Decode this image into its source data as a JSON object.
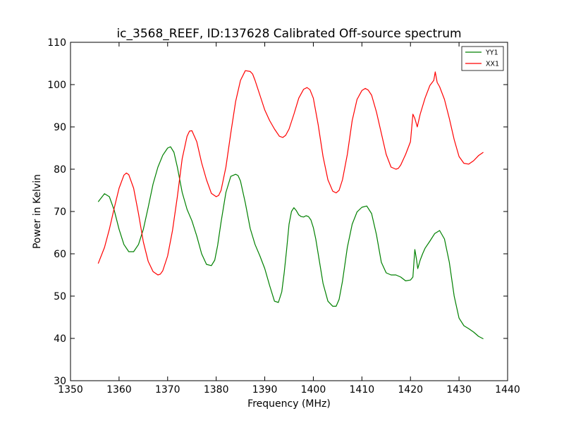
{
  "chart_data": {
    "type": "line",
    "title": "ic_3568_REEF, ID:137628 Calibrated Off-source spectrum",
    "xlabel": "Frequency (MHz)",
    "ylabel": "Power in Kelvin",
    "xlim": [
      1350,
      1440
    ],
    "ylim": [
      30,
      110
    ],
    "xticks": [
      1350,
      1360,
      1370,
      1380,
      1390,
      1400,
      1410,
      1420,
      1430,
      1440
    ],
    "yticks": [
      30,
      40,
      50,
      60,
      70,
      80,
      90,
      100,
      110
    ],
    "grid": false,
    "legend_position": "top-right",
    "series": [
      {
        "name": "YY1",
        "color": "#008000",
        "x": [
          1355.7,
          1357.0,
          1358.0,
          1359.0,
          1360.0,
          1361.0,
          1362.0,
          1363.0,
          1364.0,
          1365.0,
          1366.0,
          1367.0,
          1368.0,
          1369.0,
          1370.0,
          1370.6,
          1371.3,
          1372.0,
          1373.0,
          1374.0,
          1375.0,
          1376.0,
          1377.0,
          1378.0,
          1379.0,
          1379.7,
          1380.3,
          1381.0,
          1382.0,
          1383.0,
          1384.0,
          1384.5,
          1385.0,
          1386.0,
          1387.0,
          1388.0,
          1389.0,
          1390.0,
          1391.0,
          1392.0,
          1392.8,
          1393.5,
          1394.0,
          1394.5,
          1395.0,
          1395.5,
          1396.0,
          1396.5,
          1397.0,
          1397.5,
          1398.0,
          1398.5,
          1399.0,
          1399.5,
          1400.0,
          1400.5,
          1401.0,
          1402.0,
          1403.0,
          1404.0,
          1404.7,
          1405.3,
          1406.0,
          1407.0,
          1408.0,
          1409.0,
          1410.0,
          1411.0,
          1412.0,
          1413.0,
          1414.0,
          1415.0,
          1416.0,
          1417.0,
          1418.0,
          1419.0,
          1420.0,
          1420.5,
          1420.9,
          1421.2,
          1421.5,
          1422.0,
          1422.5,
          1423.0,
          1424.0,
          1425.0,
          1426.0,
          1427.0,
          1428.0,
          1429.0,
          1430.0,
          1431.0,
          1432.0,
          1433.0,
          1434.0,
          1435.0
        ],
        "values": [
          72.3,
          74.2,
          73.5,
          70.3,
          65.8,
          62.2,
          60.5,
          60.5,
          62.2,
          65.8,
          71.0,
          76.5,
          80.5,
          83.3,
          85.0,
          85.3,
          84.0,
          80.5,
          74.5,
          70.5,
          67.8,
          64.2,
          60.0,
          57.5,
          57.2,
          58.5,
          62.0,
          67.5,
          74.5,
          78.3,
          78.8,
          78.5,
          77.2,
          72.0,
          66.0,
          62.2,
          59.5,
          56.5,
          52.5,
          48.8,
          48.5,
          51.0,
          55.5,
          61.0,
          67.0,
          70.0,
          70.9,
          70.2,
          69.2,
          68.8,
          68.7,
          69.0,
          68.8,
          68.0,
          66.2,
          63.5,
          60.0,
          53.0,
          48.8,
          47.6,
          47.6,
          49.2,
          53.5,
          61.5,
          67.0,
          69.9,
          71.0,
          71.3,
          69.5,
          64.5,
          58.0,
          55.5,
          55.0,
          55.0,
          54.5,
          53.6,
          53.8,
          54.5,
          61.0,
          59.0,
          56.5,
          58.5,
          60.0,
          61.3,
          63.0,
          64.8,
          65.5,
          63.5,
          58.0,
          50.0,
          44.8,
          43.0,
          42.3,
          41.5,
          40.5,
          39.9
        ]
      },
      {
        "name": "XX1",
        "color": "#ff0000",
        "x": [
          1355.7,
          1357.0,
          1358.0,
          1359.0,
          1360.0,
          1361.0,
          1361.5,
          1362.0,
          1363.0,
          1364.0,
          1365.0,
          1366.0,
          1367.0,
          1368.0,
          1368.5,
          1369.0,
          1370.0,
          1371.0,
          1372.0,
          1373.0,
          1374.0,
          1374.5,
          1375.0,
          1376.0,
          1377.0,
          1378.0,
          1379.0,
          1380.0,
          1380.5,
          1381.0,
          1382.0,
          1383.0,
          1384.0,
          1385.0,
          1386.0,
          1387.0,
          1387.5,
          1388.0,
          1389.0,
          1390.0,
          1391.0,
          1392.0,
          1393.0,
          1393.7,
          1394.3,
          1395.0,
          1396.0,
          1397.0,
          1398.0,
          1398.7,
          1399.3,
          1400.0,
          1401.0,
          1402.0,
          1403.0,
          1404.0,
          1404.7,
          1405.3,
          1406.0,
          1407.0,
          1408.0,
          1409.0,
          1410.0,
          1410.7,
          1411.3,
          1412.0,
          1413.0,
          1414.0,
          1415.0,
          1416.0,
          1417.0,
          1417.5,
          1418.0,
          1419.0,
          1420.0,
          1420.5,
          1420.9,
          1421.4,
          1422.0,
          1423.0,
          1424.0,
          1424.8,
          1425.1,
          1425.5,
          1426.0,
          1427.0,
          1428.0,
          1429.0,
          1430.0,
          1431.0,
          1432.0,
          1433.0,
          1434.0,
          1435.0
        ],
        "values": [
          57.7,
          61.5,
          65.8,
          70.8,
          75.5,
          78.6,
          79.1,
          78.7,
          75.5,
          69.5,
          62.8,
          58.2,
          55.8,
          55.0,
          55.2,
          56.0,
          59.5,
          65.5,
          73.5,
          82.5,
          87.8,
          89.0,
          89.1,
          86.5,
          81.5,
          77.5,
          74.3,
          73.5,
          73.8,
          75.0,
          80.5,
          88.5,
          96.0,
          101.0,
          103.3,
          103.1,
          102.5,
          101.0,
          97.5,
          94.0,
          91.5,
          89.5,
          87.8,
          87.5,
          88.0,
          89.5,
          93.0,
          96.8,
          98.9,
          99.3,
          98.8,
          96.8,
          90.5,
          83.0,
          77.5,
          74.8,
          74.4,
          75.0,
          77.5,
          83.5,
          91.5,
          96.5,
          98.6,
          99.1,
          98.7,
          97.5,
          93.5,
          88.5,
          83.5,
          80.5,
          80.0,
          80.2,
          81.0,
          83.5,
          86.5,
          93.0,
          92.0,
          90.0,
          93.0,
          96.8,
          99.8,
          101.0,
          103.0,
          100.5,
          99.5,
          96.5,
          92.0,
          87.0,
          83.0,
          81.4,
          81.2,
          82.0,
          83.2,
          84.0
        ]
      }
    ]
  }
}
